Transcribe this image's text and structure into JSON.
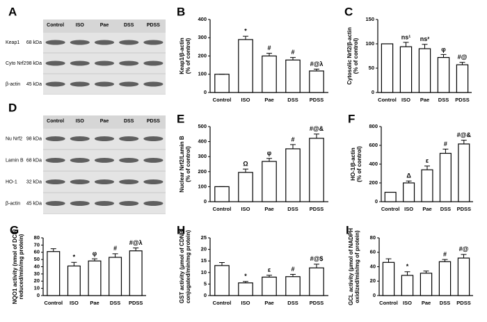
{
  "blots": [
    {
      "panel": "A",
      "lanes": [
        "Control",
        "ISO",
        "Pae",
        "DSS",
        "PDSS"
      ],
      "rows": [
        {
          "protein": "Keap1",
          "size": "68 kDa"
        },
        {
          "protein": "Cyto Nrf2",
          "size": "98 kDa"
        },
        {
          "protein": "β-actin",
          "size": "45 kDa"
        }
      ]
    },
    {
      "panel": "D",
      "lanes": [
        "Control",
        "ISO",
        "Pae",
        "DSS",
        "PDSS"
      ],
      "rows": [
        {
          "protein": "Nu Nrf2",
          "size": "98 kDa"
        },
        {
          "protein": "Lamin B",
          "size": "68 kDa"
        },
        {
          "protein": "HO-1",
          "size": "32 kDa"
        },
        {
          "protein": "β-actin",
          "size": "45 kDa"
        }
      ]
    }
  ],
  "chart_data": [
    {
      "type": "bar",
      "panel": "B",
      "ylabel": [
        "Keap1/β-actin",
        "(% of control)"
      ],
      "categories": [
        "Control",
        "ISO",
        "Pae",
        "DSS",
        "PDSS"
      ],
      "values": [
        100,
        290,
        200,
        178,
        118
      ],
      "errors": [
        0,
        18,
        15,
        14,
        10
      ],
      "annotations": [
        null,
        "*",
        "#",
        "#",
        "#@λ"
      ],
      "ylim": [
        0,
        400
      ],
      "yticks": [
        0,
        100,
        200,
        300,
        400
      ],
      "color": "#ffffff"
    },
    {
      "type": "bar",
      "panel": "C",
      "ylabel": [
        "Cytosolic Nrf2/β-actin",
        "(% of control)"
      ],
      "categories": [
        "Control",
        "ISO",
        "Pae",
        "DSS",
        "PDSS"
      ],
      "values": [
        100,
        94,
        90,
        72,
        57
      ],
      "errors": [
        0,
        9,
        9,
        6,
        5
      ],
      "annotations": [
        null,
        "ns¹",
        "ns²",
        "φ",
        "#@"
      ],
      "ylim": [
        0,
        150
      ],
      "yticks": [
        0,
        50,
        100,
        150
      ],
      "color": "#ffffff"
    },
    {
      "type": "bar",
      "panel": "E",
      "ylabel": [
        "Nuclear Nrf2/Lamin B",
        "(% of control)"
      ],
      "categories": [
        "Control",
        "ISO",
        "Pae",
        "DSS",
        "PDSS"
      ],
      "values": [
        100,
        195,
        268,
        352,
        422
      ],
      "errors": [
        0,
        22,
        20,
        28,
        28
      ],
      "annotations": [
        null,
        "Ω",
        "φ",
        "#",
        "#@&"
      ],
      "ylim": [
        0,
        500
      ],
      "yticks": [
        0,
        100,
        200,
        300,
        400,
        500
      ],
      "color": "#ffffff"
    },
    {
      "type": "bar",
      "panel": "F",
      "ylabel": [
        "HO-1/β-actin",
        "(% of control)"
      ],
      "categories": [
        "Control",
        "ISO",
        "Pae",
        "DSS",
        "PDSS"
      ],
      "values": [
        100,
        200,
        340,
        515,
        615
      ],
      "errors": [
        0,
        20,
        40,
        45,
        40
      ],
      "annotations": [
        null,
        "Δ",
        "ε",
        "#",
        "#@&"
      ],
      "ylim": [
        0,
        800
      ],
      "yticks": [
        0,
        200,
        400,
        600,
        800
      ],
      "color": "#ffffff"
    },
    {
      "type": "bar",
      "panel": "G",
      "ylabel": [
        "NQO1 activity (nmol of DCIP",
        "reduced/min/mg protein)"
      ],
      "categories": [
        "Control",
        "ISO",
        "Pae",
        "DSS",
        "PDSS"
      ],
      "values": [
        61,
        41,
        48,
        53,
        62
      ],
      "errors": [
        4,
        5,
        3,
        5,
        4
      ],
      "annotations": [
        null,
        "*",
        "φ",
        "#",
        "#@λ"
      ],
      "ylim": [
        0,
        80
      ],
      "yticks": [
        0,
        10,
        20,
        30,
        40,
        50,
        60,
        70,
        80
      ],
      "color": "#ffffff"
    },
    {
      "type": "bar",
      "panel": "H",
      "ylabel": [
        "GST activity (μmol of CDNB",
        "conjugated/min/mg protein)"
      ],
      "categories": [
        "Control",
        "ISO",
        "Pae",
        "DSS",
        "PDSS"
      ],
      "values": [
        13,
        5.5,
        8,
        8.2,
        12
      ],
      "errors": [
        1.3,
        0.6,
        0.8,
        1,
        1.6
      ],
      "annotations": [
        null,
        "*",
        "ε",
        "#",
        "#@$"
      ],
      "ylim": [
        0,
        25
      ],
      "yticks": [
        0,
        5,
        10,
        15,
        20,
        25
      ],
      "color": "#ffffff"
    },
    {
      "type": "bar",
      "panel": "I",
      "ylabel": [
        "GCL activity (μmol of NADPH",
        "oxidized/min/mg of protein)"
      ],
      "categories": [
        "Control",
        "ISO",
        "Pae",
        "DSS",
        "PDSS"
      ],
      "values": [
        46,
        28,
        31,
        47,
        52
      ],
      "errors": [
        5,
        5,
        3,
        3,
        5
      ],
      "annotations": [
        null,
        "*",
        null,
        "#",
        "#@"
      ],
      "ylim": [
        0,
        80
      ],
      "yticks": [
        0,
        20,
        40,
        60,
        80
      ],
      "color": "#ffffff"
    }
  ]
}
